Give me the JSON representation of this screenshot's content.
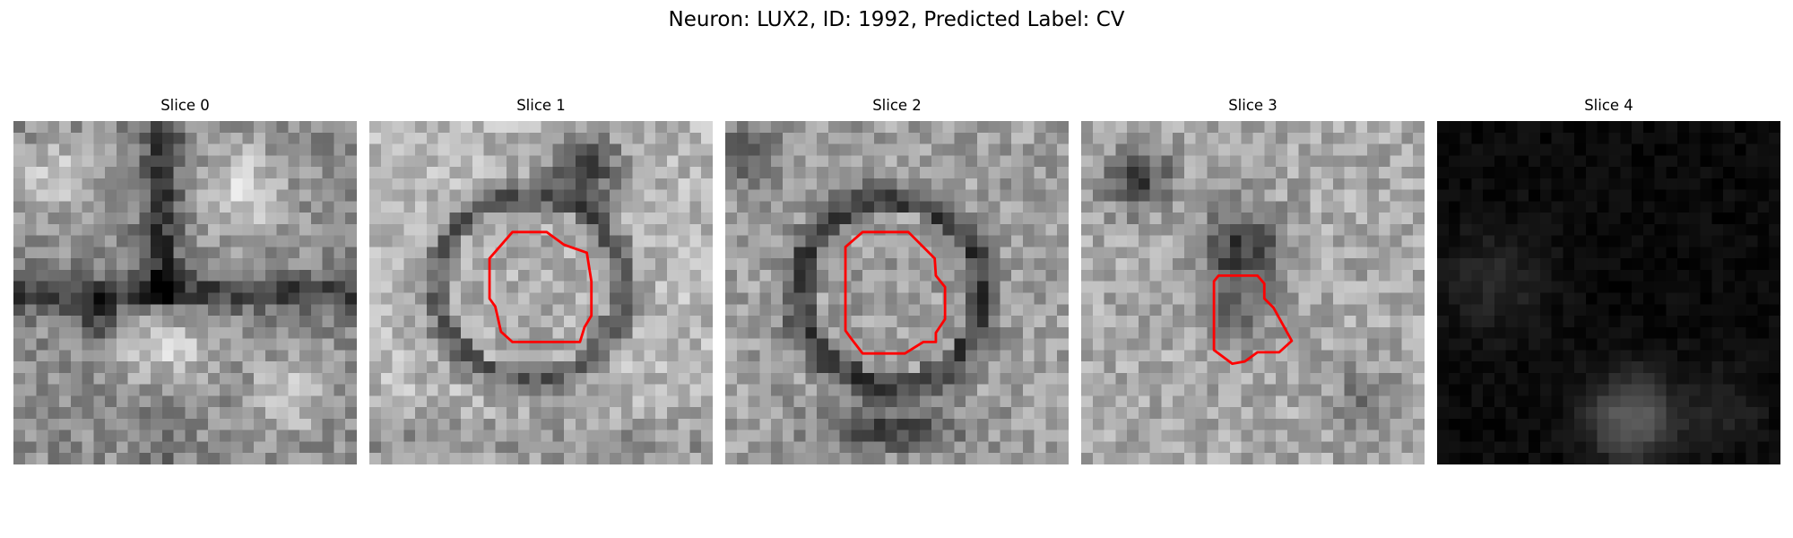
{
  "figure": {
    "title": "Neuron: LUX2, ID: 1992, Predicted Label: CV"
  },
  "panels": [
    {
      "title": "Slice 0",
      "has_contour": false,
      "tone": "medium"
    },
    {
      "title": "Slice 1",
      "has_contour": true,
      "tone": "light"
    },
    {
      "title": "Slice 2",
      "has_contour": true,
      "tone": "light"
    },
    {
      "title": "Slice 3",
      "has_contour": true,
      "tone": "medium"
    },
    {
      "title": "Slice 4",
      "has_contour": false,
      "tone": "dark"
    }
  ],
  "colors": {
    "contour": "#ff0000",
    "background": "#ffffff"
  }
}
